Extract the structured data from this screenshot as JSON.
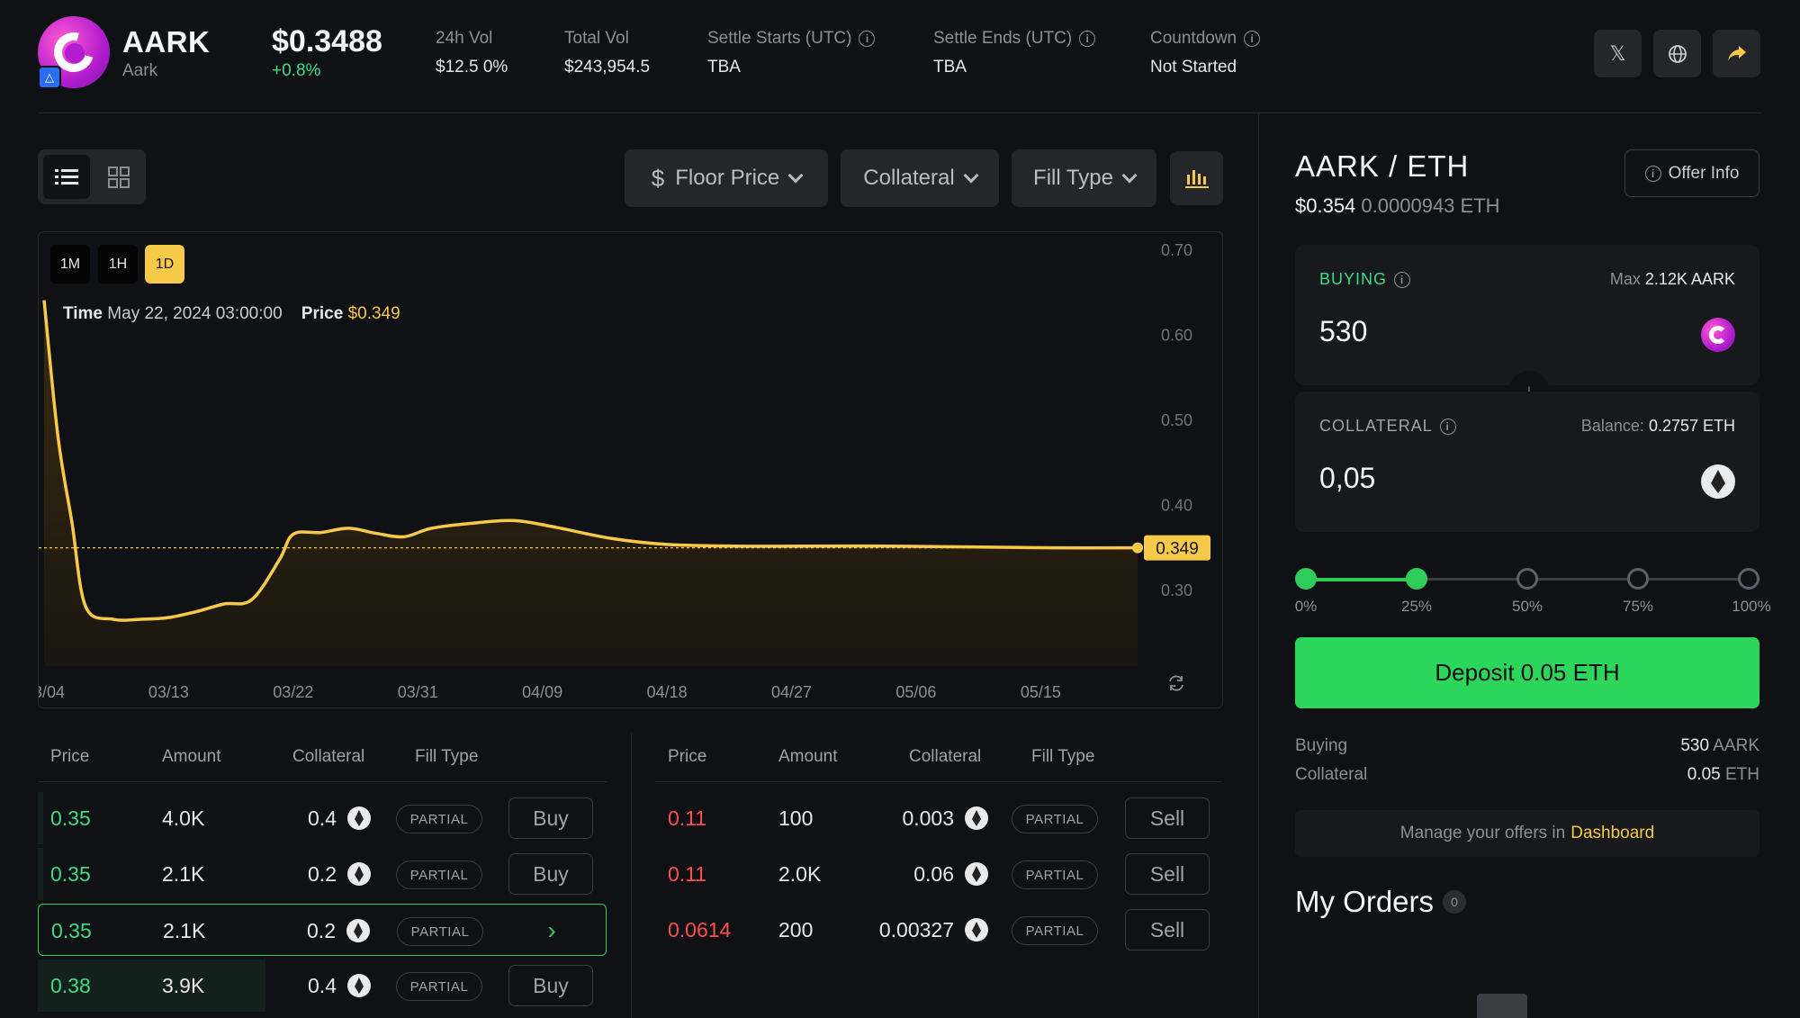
{
  "header": {
    "token_name": "AARK",
    "token_sub": "Aark",
    "price": "$0.3488",
    "change": "+0.8%",
    "stats": [
      {
        "label": "24h Vol",
        "value": "$12.5 0%"
      },
      {
        "label": "Total Vol",
        "value": "$243,954.5"
      },
      {
        "label": "Settle Starts (UTC)",
        "value": "TBA"
      },
      {
        "label": "Settle Ends (UTC)",
        "value": "TBA"
      },
      {
        "label": "Countdown",
        "value": "Not Started"
      }
    ]
  },
  "filters": {
    "floor_price": "Floor Price",
    "collateral": "Collateral",
    "fill_type": "Fill Type"
  },
  "chart": {
    "timeframes": [
      "1M",
      "1H",
      "1D"
    ],
    "active_timeframe": "1D",
    "tooltip_time_label": "Time",
    "tooltip_time": "May 22, 2024 03:00:00",
    "tooltip_price_label": "Price",
    "tooltip_price": "$0.349",
    "current_label": "0.349"
  },
  "chart_data": {
    "type": "area",
    "x_tick_labels": [
      "3/04",
      "03/13",
      "03/22",
      "03/31",
      "04/09",
      "04/18",
      "04/27",
      "05/06",
      "05/15"
    ],
    "y_tick_labels": [
      "0.70",
      "0.60",
      "0.50",
      "0.40",
      "0.30"
    ],
    "ylim": [
      0.21,
      0.72
    ],
    "x": [
      "03/04",
      "03/05",
      "03/06",
      "03/07",
      "03/09",
      "03/11",
      "03/13",
      "03/15",
      "03/17",
      "03/19",
      "03/21",
      "03/22",
      "03/24",
      "03/26",
      "03/28",
      "03/30",
      "04/01",
      "04/04",
      "04/07",
      "04/10",
      "04/14",
      "04/18",
      "04/23",
      "04/28",
      "05/04",
      "05/10",
      "05/16",
      "05/22"
    ],
    "values": [
      0.64,
      0.48,
      0.38,
      0.28,
      0.265,
      0.265,
      0.267,
      0.274,
      0.283,
      0.288,
      0.335,
      0.365,
      0.367,
      0.372,
      0.366,
      0.362,
      0.372,
      0.378,
      0.381,
      0.373,
      0.36,
      0.353,
      0.351,
      0.351,
      0.351,
      0.35,
      0.349,
      0.349
    ],
    "current_value": 0.349,
    "colors": {
      "line": "#f7c948",
      "fill": "#3a2c0f"
    }
  },
  "buy_table": {
    "headers": [
      "Price",
      "Amount",
      "Collateral",
      "Fill Type"
    ],
    "rows": [
      {
        "price": "0.35",
        "amount": "4.0K",
        "collateral": "0.4",
        "fill": "PARTIAL",
        "action": "Buy",
        "depth": 0.01
      },
      {
        "price": "0.35",
        "amount": "2.1K",
        "collateral": "0.2",
        "fill": "PARTIAL",
        "action": "Buy",
        "depth": 0.01
      },
      {
        "price": "0.35",
        "amount": "2.1K",
        "collateral": "0.2",
        "fill": "PARTIAL",
        "action": "",
        "selected": true,
        "depth": 0
      },
      {
        "price": "0.38",
        "amount": "3.9K",
        "collateral": "0.4",
        "fill": "PARTIAL",
        "action": "Buy",
        "depth": 0.4
      }
    ]
  },
  "sell_table": {
    "headers": [
      "Price",
      "Amount",
      "Collateral",
      "Fill Type"
    ],
    "rows": [
      {
        "price": "0.11",
        "amount": "100",
        "collateral": "0.003",
        "fill": "PARTIAL",
        "action": "Sell"
      },
      {
        "price": "0.11",
        "amount": "2.0K",
        "collateral": "0.06",
        "fill": "PARTIAL",
        "action": "Sell"
      },
      {
        "price": "0.0614",
        "amount": "200",
        "collateral": "0.00327",
        "fill": "PARTIAL",
        "action": "Sell"
      }
    ]
  },
  "trade": {
    "pair": "AARK / ETH",
    "usd_price": "$0.354",
    "eth_price": "0.0000943 ETH",
    "offer_info": "Offer Info",
    "buying_label": "BUYING",
    "max_label": "Max",
    "max_value": "2.12K AARK",
    "buying_amount": "530",
    "collateral_label": "COLLATERAL",
    "balance_label": "Balance:",
    "balance_value": "0.2757 ETH",
    "collateral_amount": "0,05",
    "slider_labels": [
      "0%",
      "25%",
      "50%",
      "75%",
      "100%"
    ],
    "slider_value_percent": 25,
    "deposit_label": "Deposit 0.05 ETH",
    "summary": {
      "buying_label": "Buying",
      "buying_value": "530",
      "buying_unit": "AARK",
      "collateral_label": "Collateral",
      "collateral_value": "0.05",
      "collateral_unit": "ETH"
    },
    "manage_text": "Manage your offers in",
    "manage_link": "Dashboard",
    "my_orders": "My Orders",
    "orders_count": "0"
  },
  "colors": {
    "accent": "#f7c948",
    "buy": "#3ddc84",
    "sell": "#ff4d4f",
    "deposit": "#2bd65a"
  }
}
